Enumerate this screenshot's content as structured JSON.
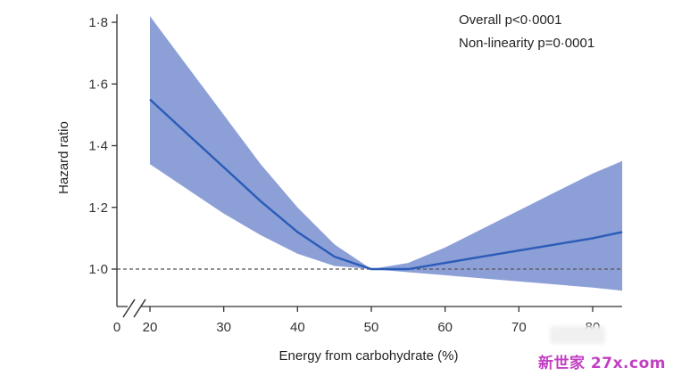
{
  "chart_data": {
    "type": "line",
    "title": "",
    "xlabel": "Energy from carbohydrate (%)",
    "ylabel": "Hazard ratio",
    "xlim": [
      18,
      84
    ],
    "ylim": [
      0.9,
      1.85
    ],
    "x_ticks": [
      {
        "value": 20,
        "label": "20"
      },
      {
        "value": 30,
        "label": "30"
      },
      {
        "value": 40,
        "label": "40"
      },
      {
        "value": 50,
        "label": "50"
      },
      {
        "value": 60,
        "label": "60"
      },
      {
        "value": 70,
        "label": "70"
      },
      {
        "value": 80,
        "label": "80"
      }
    ],
    "x_origin_label": "0",
    "y_ticks": [
      {
        "value": 1.0,
        "label": "1·0"
      },
      {
        "value": 1.2,
        "label": "1·2"
      },
      {
        "value": 1.4,
        "label": "1·4"
      },
      {
        "value": 1.6,
        "label": "1·6"
      },
      {
        "value": 1.8,
        "label": "1·8"
      }
    ],
    "axis_break": true,
    "grid": false,
    "reference_line": {
      "y": 1.0,
      "style": "dashed"
    },
    "annotations": [
      "Overall p<0·0001",
      "Non-linearity p=0·0001"
    ],
    "series": [
      {
        "x": [
          20,
          25,
          30,
          35,
          40,
          45,
          50,
          55,
          60,
          65,
          70,
          75,
          80,
          84
        ],
        "y": [
          1.55,
          1.44,
          1.33,
          1.22,
          1.12,
          1.04,
          1.0,
          1.0,
          1.02,
          1.04,
          1.06,
          1.08,
          1.1,
          1.12
        ],
        "lower": [
          1.34,
          1.26,
          1.18,
          1.11,
          1.05,
          1.01,
          1.0,
          0.99,
          0.98,
          0.97,
          0.96,
          0.95,
          0.94,
          0.93
        ],
        "upper": [
          1.82,
          1.66,
          1.5,
          1.34,
          1.2,
          1.08,
          1.0,
          1.02,
          1.07,
          1.13,
          1.19,
          1.25,
          1.31,
          1.35
        ]
      }
    ],
    "colors": {
      "line": "#2a5cb8",
      "band": "#7f95d3",
      "axis": "#333333",
      "reference": "#555555"
    }
  },
  "watermark": "新世家 27x.com"
}
